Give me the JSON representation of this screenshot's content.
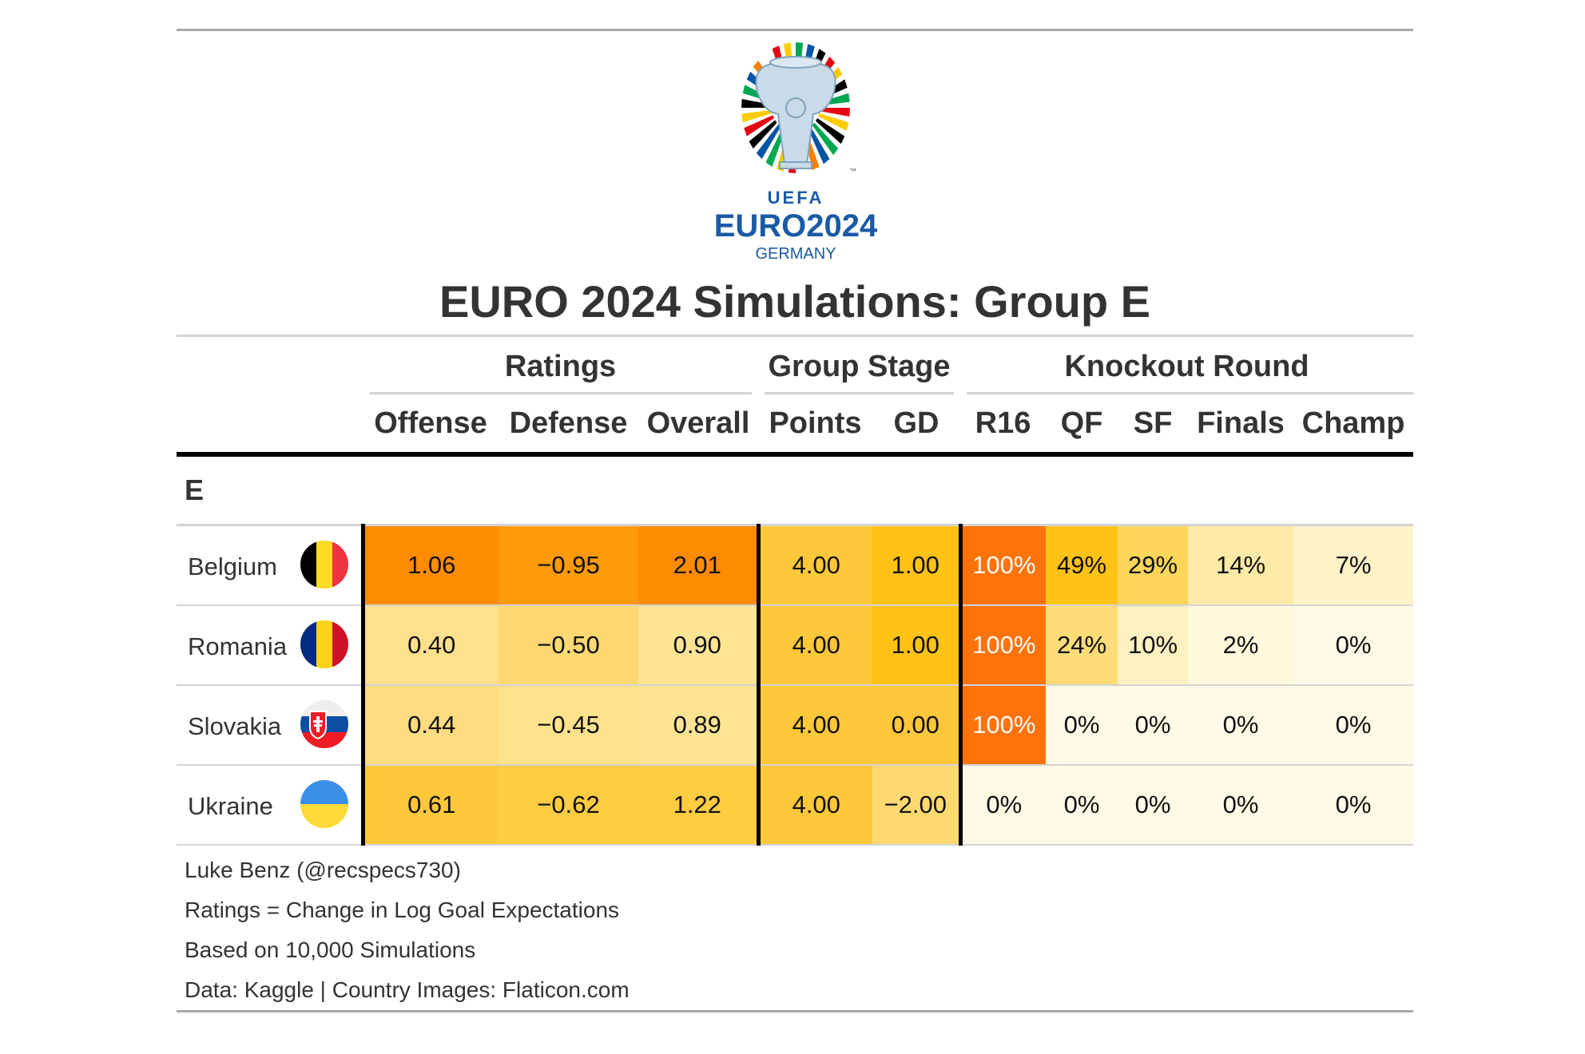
{
  "logo": {
    "top_text": "UEFA",
    "main_text": "EURO2024",
    "sub_text": "GERMANY",
    "tm": "™",
    "icon": "euro-2024-trophy-logo"
  },
  "title": "EURO 2024 Simulations: Group E",
  "spanners": {
    "ratings": "Ratings",
    "group_stage": "Group Stage",
    "knockout": "Knockout Round"
  },
  "columns": [
    "Offense",
    "Defense",
    "Overall",
    "Points",
    "GD",
    "R16",
    "QF",
    "SF",
    "Finals",
    "Champ"
  ],
  "group_label": "E",
  "rows": [
    {
      "team": "Belgium",
      "flag": "belgium-flag-icon",
      "offense": "1.06",
      "defense": "−0.95",
      "overall": "2.01",
      "points": "4.00",
      "gd": "1.00",
      "r16": "100%",
      "qf": "49%",
      "sf": "29%",
      "finals": "14%",
      "champ": "7%"
    },
    {
      "team": "Romania",
      "flag": "romania-flag-icon",
      "offense": "0.40",
      "defense": "−0.50",
      "overall": "0.90",
      "points": "4.00",
      "gd": "1.00",
      "r16": "100%",
      "qf": "24%",
      "sf": "10%",
      "finals": "2%",
      "champ": "0%"
    },
    {
      "team": "Slovakia",
      "flag": "slovakia-flag-icon",
      "offense": "0.44",
      "defense": "−0.45",
      "overall": "0.89",
      "points": "4.00",
      "gd": "0.00",
      "r16": "100%",
      "qf": "0%",
      "sf": "0%",
      "finals": "0%",
      "champ": "0%"
    },
    {
      "team": "Ukraine",
      "flag": "ukraine-flag-icon",
      "offense": "0.61",
      "defense": "−0.62",
      "overall": "1.22",
      "points": "4.00",
      "gd": "−2.00",
      "r16": "0%",
      "qf": "0%",
      "sf": "0%",
      "finals": "0%",
      "champ": "0%"
    }
  ],
  "cell_colors": [
    [
      "#ff8c00",
      "#ff9a08",
      "#ff8c00",
      "#ffc83a",
      "#ffc215",
      "#ff7308",
      "#ffc215",
      "#ffd65a",
      "#ffeaa8",
      "#fff2c8"
    ],
    [
      "#ffe08c",
      "#ffd873",
      "#ffe493",
      "#ffc83a",
      "#ffc215",
      "#ff7308",
      "#ffdc78",
      "#fff0c2",
      "#fff8dc",
      "#fffae6"
    ],
    [
      "#ffdc80",
      "#ffe28c",
      "#ffe493",
      "#ffc83a",
      "#ffc83a",
      "#ff7308",
      "#fffae6",
      "#fffae6",
      "#fffae6",
      "#fffae6"
    ],
    [
      "#ffc83a",
      "#ffcc42",
      "#ffcc42",
      "#ffc83a",
      "#ffd970",
      "#fffae6",
      "#fffae6",
      "#fffae6",
      "#fffae6",
      "#fffae6"
    ]
  ],
  "footer": [
    "Luke Benz (@recspecs730)",
    "Ratings = Change in Log Goal Expectations",
    "Based on 10,000 Simulations",
    "Data: Kaggle | Country Images: Flaticon.com"
  ]
}
